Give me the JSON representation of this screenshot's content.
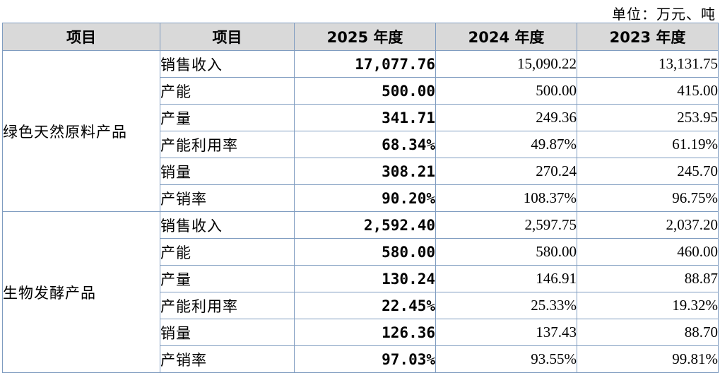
{
  "unit_label": "单位：万元、吨",
  "headers": [
    "项目",
    "项目",
    "2025 年度",
    "2024 年度",
    "2023 年度"
  ],
  "groups": [
    {
      "name": "绿色天然原料产品",
      "rows": [
        {
          "item": "销售收入",
          "y2025": "17,077.76",
          "y2024": "15,090.22",
          "y2023": "13,131.75"
        },
        {
          "item": "产能",
          "y2025": "500.00",
          "y2024": "500.00",
          "y2023": "415.00"
        },
        {
          "item": "产量",
          "y2025": "341.71",
          "y2024": "249.36",
          "y2023": "253.95"
        },
        {
          "item": "产能利用率",
          "y2025": "68.34%",
          "y2024": "49.87%",
          "y2023": "61.19%"
        },
        {
          "item": "销量",
          "y2025": "308.21",
          "y2024": "270.24",
          "y2023": "245.70"
        },
        {
          "item": "产销率",
          "y2025": "90.20%",
          "y2024": "108.37%",
          "y2023": "96.75%"
        }
      ]
    },
    {
      "name": "生物发酵产品",
      "rows": [
        {
          "item": "销售收入",
          "y2025": "2,592.40",
          "y2024": "2,597.75",
          "y2023": "2,037.20"
        },
        {
          "item": "产能",
          "y2025": "580.00",
          "y2024": "580.00",
          "y2023": "460.00"
        },
        {
          "item": "产量",
          "y2025": "130.24",
          "y2024": "146.91",
          "y2023": "88.87"
        },
        {
          "item": "产能利用率",
          "y2025": "22.45%",
          "y2024": "25.33%",
          "y2023": "19.32%"
        },
        {
          "item": "销量",
          "y2025": "126.36",
          "y2024": "137.43",
          "y2023": "88.70"
        },
        {
          "item": "产销率",
          "y2025": "97.03%",
          "y2024": "93.55%",
          "y2023": "99.81%"
        }
      ]
    }
  ]
}
